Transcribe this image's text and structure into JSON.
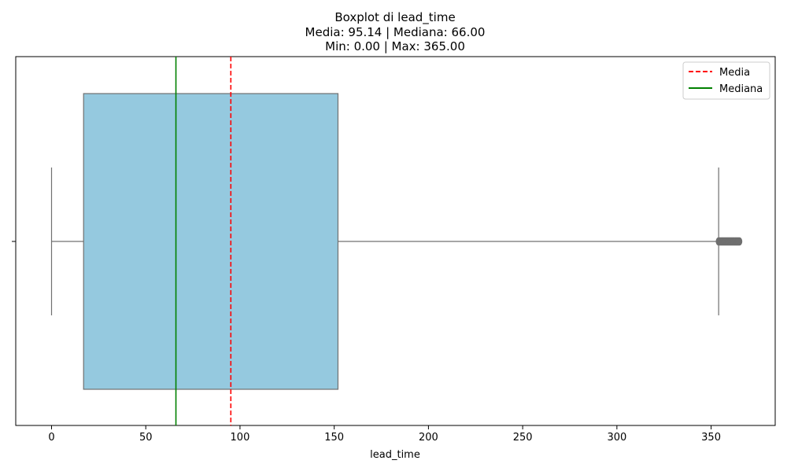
{
  "chart_data": {
    "type": "boxplot",
    "title_lines": [
      "Boxplot di lead_time",
      "Media: 95.14 | Mediana: 66.00",
      "Min: 0.00 | Max: 365.00"
    ],
    "xlabel": "lead_time",
    "ylabel": "",
    "xlim": [
      -19,
      384
    ],
    "xticks": [
      0,
      50,
      100,
      150,
      200,
      250,
      300,
      350
    ],
    "xtick_labels": [
      "0",
      "50",
      "100",
      "150",
      "200",
      "250",
      "300",
      "350"
    ],
    "grid": false,
    "box": {
      "min": 0,
      "q1": 17,
      "median": 66,
      "q3": 152,
      "whisker_low": 0,
      "whisker_high": 354,
      "outliers_range": [
        354,
        365
      ],
      "fill_color": "#95c9df",
      "edge_color": "#707070"
    },
    "reference_lines": [
      {
        "name": "Media",
        "value": 95.14,
        "color": "#ff0000",
        "style": "dashed"
      },
      {
        "name": "Mediana",
        "value": 66.0,
        "color": "#008000",
        "style": "solid"
      }
    ],
    "legend": {
      "position": "top-right",
      "items": [
        {
          "label": "Media",
          "color": "#ff0000",
          "style": "dashed"
        },
        {
          "label": "Mediana",
          "color": "#008000",
          "style": "solid"
        }
      ]
    }
  }
}
